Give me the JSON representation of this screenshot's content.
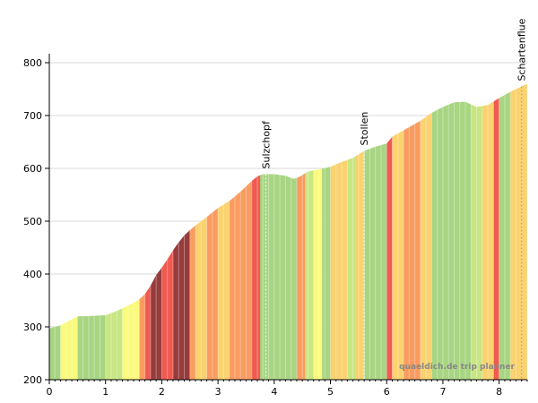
{
  "chart_data": {
    "type": "area",
    "title": "",
    "xlabel": "",
    "ylabel": "",
    "xlim": [
      0,
      8.5
    ],
    "ylim": [
      200,
      800
    ],
    "x_ticks": [
      0,
      1,
      2,
      3,
      4,
      5,
      6,
      7,
      8
    ],
    "y_ticks": [
      200,
      300,
      400,
      500,
      600,
      700,
      800
    ],
    "grid": true,
    "credit": "quaeldich.de trip planner",
    "waypoints": [
      {
        "name": "Sulzchopf",
        "x": 3.85
      },
      {
        "name": "Stollen",
        "x": 5.6
      },
      {
        "name": "Schartenflue",
        "x": 8.4
      }
    ],
    "grade_colors": {
      "flat": "#a8d582",
      "gentle": "#c8e682",
      "easy": "#fafa7d",
      "moderate": "#fad26e",
      "steep": "#fa9b5f",
      "very_steep": "#f05a50",
      "extreme": "#963c3c"
    },
    "elevation_x": [
      0,
      0.2,
      0.5,
      0.8,
      1.0,
      1.2,
      1.4,
      1.6,
      1.7,
      1.8,
      1.9,
      2.0,
      2.1,
      2.2,
      2.3,
      2.4,
      2.5,
      2.6,
      2.8,
      3.0,
      3.2,
      3.4,
      3.6,
      3.7,
      3.8,
      4.0,
      4.2,
      4.35,
      4.45,
      4.6,
      4.8,
      5.0,
      5.2,
      5.4,
      5.6,
      5.8,
      6.0,
      6.1,
      6.2,
      6.4,
      6.6,
      6.8,
      7.0,
      7.2,
      7.4,
      7.6,
      7.8,
      8.0,
      8.2,
      8.4,
      8.5
    ],
    "elevation_y": [
      297,
      303,
      320,
      321,
      322,
      330,
      340,
      352,
      362,
      378,
      398,
      412,
      428,
      445,
      460,
      473,
      483,
      492,
      508,
      525,
      538,
      556,
      576,
      585,
      589,
      589,
      586,
      580,
      584,
      594,
      598,
      603,
      612,
      620,
      633,
      641,
      647,
      660,
      666,
      678,
      690,
      705,
      716,
      725,
      726,
      716,
      720,
      733,
      745,
      755,
      760
    ],
    "segments": [
      {
        "x0": 0,
        "x1": 0.2,
        "grade": "flat"
      },
      {
        "x0": 0.2,
        "x1": 0.5,
        "grade": "easy"
      },
      {
        "x0": 0.5,
        "x1": 1.0,
        "grade": "flat"
      },
      {
        "x0": 1.0,
        "x1": 1.3,
        "grade": "gentle"
      },
      {
        "x0": 1.3,
        "x1": 1.6,
        "grade": "easy"
      },
      {
        "x0": 1.6,
        "x1": 1.7,
        "grade": "steep"
      },
      {
        "x0": 1.7,
        "x1": 1.8,
        "grade": "very_steep"
      },
      {
        "x0": 1.8,
        "x1": 2.0,
        "grade": "extreme"
      },
      {
        "x0": 2.0,
        "x1": 2.2,
        "grade": "very_steep"
      },
      {
        "x0": 2.2,
        "x1": 2.5,
        "grade": "extreme"
      },
      {
        "x0": 2.5,
        "x1": 2.6,
        "grade": "steep"
      },
      {
        "x0": 2.6,
        "x1": 2.8,
        "grade": "moderate"
      },
      {
        "x0": 2.8,
        "x1": 3.0,
        "grade": "steep"
      },
      {
        "x0": 3.0,
        "x1": 3.2,
        "grade": "moderate"
      },
      {
        "x0": 3.2,
        "x1": 3.6,
        "grade": "steep"
      },
      {
        "x0": 3.6,
        "x1": 3.75,
        "grade": "very_steep"
      },
      {
        "x0": 3.75,
        "x1": 4.4,
        "grade": "flat"
      },
      {
        "x0": 4.4,
        "x1": 4.55,
        "grade": "steep"
      },
      {
        "x0": 4.55,
        "x1": 4.7,
        "grade": "gentle"
      },
      {
        "x0": 4.7,
        "x1": 4.85,
        "grade": "easy"
      },
      {
        "x0": 4.85,
        "x1": 5.0,
        "grade": "flat"
      },
      {
        "x0": 5.0,
        "x1": 5.3,
        "grade": "moderate"
      },
      {
        "x0": 5.3,
        "x1": 5.45,
        "grade": "gentle"
      },
      {
        "x0": 5.45,
        "x1": 5.6,
        "grade": "moderate"
      },
      {
        "x0": 5.6,
        "x1": 6.0,
        "grade": "flat"
      },
      {
        "x0": 6.0,
        "x1": 6.1,
        "grade": "very_steep"
      },
      {
        "x0": 6.1,
        "x1": 6.3,
        "grade": "moderate"
      },
      {
        "x0": 6.3,
        "x1": 6.6,
        "grade": "steep"
      },
      {
        "x0": 6.6,
        "x1": 6.8,
        "grade": "moderate"
      },
      {
        "x0": 6.8,
        "x1": 7.1,
        "grade": "flat"
      },
      {
        "x0": 7.1,
        "x1": 7.5,
        "grade": "flat"
      },
      {
        "x0": 7.5,
        "x1": 7.7,
        "grade": "gentle"
      },
      {
        "x0": 7.7,
        "x1": 7.9,
        "grade": "moderate"
      },
      {
        "x0": 7.9,
        "x1": 8.0,
        "grade": "very_steep"
      },
      {
        "x0": 8.0,
        "x1": 8.2,
        "grade": "flat"
      },
      {
        "x0": 8.2,
        "x1": 8.5,
        "grade": "moderate"
      }
    ]
  }
}
